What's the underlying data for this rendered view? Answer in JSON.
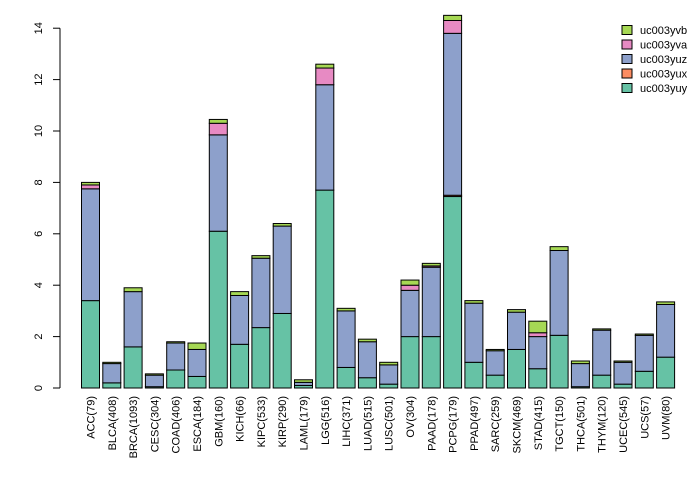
{
  "chart_data": {
    "type": "bar",
    "stacked": true,
    "title": "",
    "xlabel": "",
    "ylabel": "",
    "ylim": [
      0,
      14.5
    ],
    "yticks": [
      0,
      2,
      4,
      6,
      8,
      10,
      12,
      14
    ],
    "categories": [
      "ACC(79)",
      "BLCA(408)",
      "BRCA(1093)",
      "CESC(304)",
      "COAD(406)",
      "ESCA(184)",
      "GBM(160)",
      "KICH(66)",
      "KIPC(533)",
      "KIRP(290)",
      "LAML(179)",
      "LGG(516)",
      "LIHC(371)",
      "LUAD(515)",
      "LUSC(501)",
      "OV(304)",
      "PAAD(178)",
      "PCPG(179)",
      "PPAD(497)",
      "SARC(259)",
      "SKCM(469)",
      "STAD(415)",
      "TGCT(150)",
      "THCA(501)",
      "THYM(120)",
      "UCEC(545)",
      "UCS(57)",
      "UVM(80)"
    ],
    "legend_position": "top-right",
    "series": [
      {
        "name": "uc003yuy",
        "color": "#66c2a5",
        "values": [
          3.4,
          0.2,
          1.6,
          0.05,
          0.7,
          0.45,
          6.1,
          1.7,
          2.35,
          2.9,
          0.1,
          7.7,
          0.8,
          0.4,
          0.15,
          2.0,
          2.0,
          7.45,
          1.0,
          0.5,
          1.5,
          0.75,
          2.05,
          0.05,
          0.5,
          0.15,
          0.65,
          1.2
        ]
      },
      {
        "name": "uc003yux",
        "color": "#fc8d62",
        "values": [
          0,
          0,
          0,
          0,
          0,
          0,
          0,
          0,
          0,
          0,
          0,
          0,
          0,
          0,
          0,
          0,
          0,
          0.05,
          0,
          0,
          0,
          0,
          0,
          0,
          0,
          0,
          0,
          0
        ]
      },
      {
        "name": "uc003yuz",
        "color": "#8da0cb",
        "values": [
          4.35,
          0.75,
          2.15,
          0.45,
          1.05,
          1.05,
          3.75,
          1.9,
          2.7,
          3.4,
          0.12,
          4.1,
          2.2,
          1.4,
          0.75,
          1.8,
          2.7,
          6.3,
          2.3,
          0.95,
          1.45,
          1.25,
          3.3,
          0.9,
          1.75,
          0.85,
          1.4,
          2.05
        ]
      },
      {
        "name": "uc003yva",
        "color": "#e78ac3",
        "values": [
          0.15,
          0,
          0,
          0,
          0,
          0,
          0.45,
          0,
          0,
          0,
          0,
          0.65,
          0,
          0,
          0,
          0.2,
          0.05,
          0.5,
          0,
          0,
          0,
          0.15,
          0,
          0,
          0,
          0,
          0,
          0
        ]
      },
      {
        "name": "uc003yvb",
        "color": "#a6d854",
        "values": [
          0.1,
          0.05,
          0.15,
          0.05,
          0.05,
          0.25,
          0.15,
          0.15,
          0.1,
          0.1,
          0.1,
          0.15,
          0.1,
          0.1,
          0.1,
          0.2,
          0.1,
          0.2,
          0.1,
          0.05,
          0.1,
          0.45,
          0.15,
          0.1,
          0.05,
          0.05,
          0.05,
          0.1
        ]
      }
    ]
  }
}
